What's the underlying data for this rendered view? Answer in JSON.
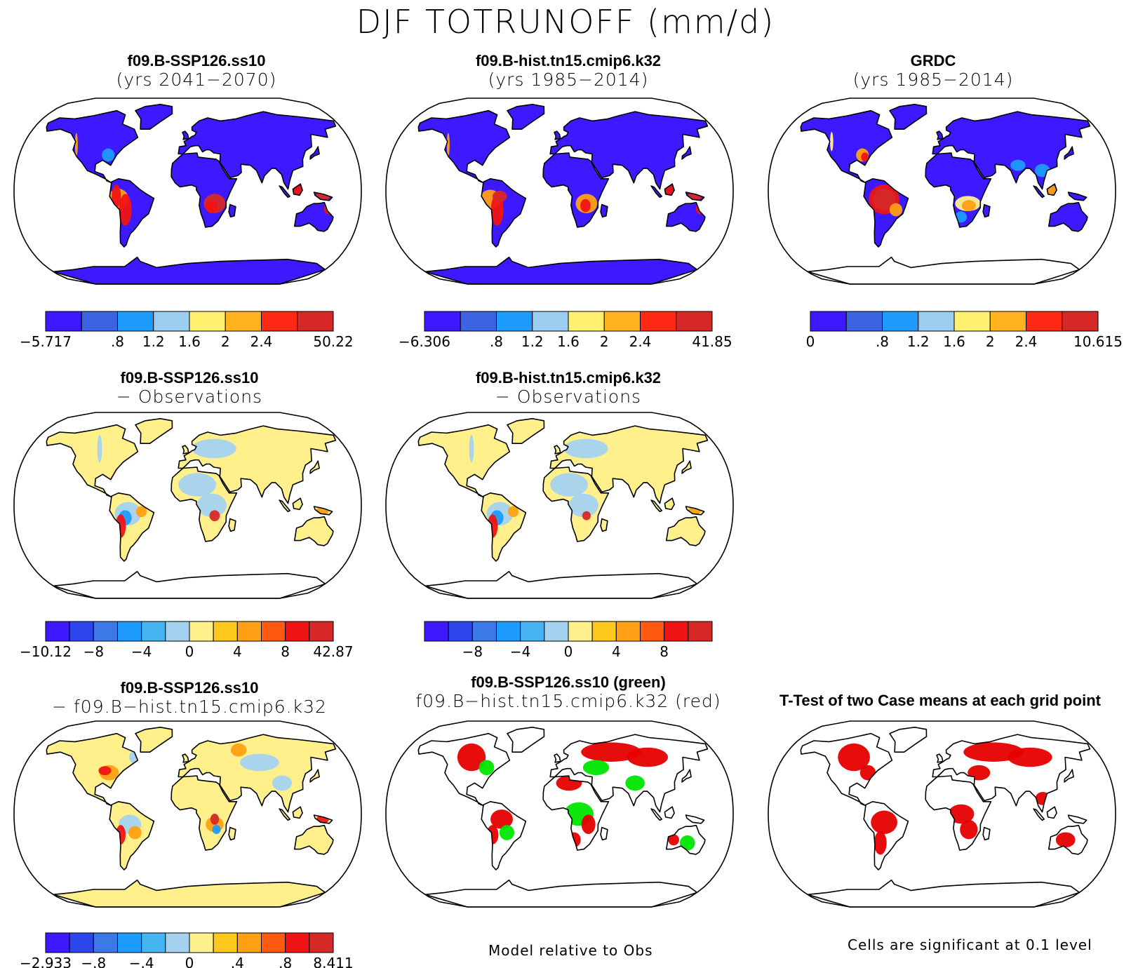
{
  "title": "DJF TOTRUNOFF (mm/d)",
  "panels": [
    {
      "id": "p1",
      "line1": "f09.B-SSP126.ss10",
      "line2": "(yrs 2041−2070)",
      "kind": "absolute"
    },
    {
      "id": "p2",
      "line1": "f09.B-hist.tn15.cmip6.k32",
      "line2": "(yrs 1985−2014)",
      "kind": "absolute"
    },
    {
      "id": "p3",
      "line1": "GRDC",
      "line2": "(yrs 1985−2014)",
      "kind": "absolute"
    },
    {
      "id": "p4",
      "line1": "f09.B-SSP126.ss10",
      "line2": "− Observations",
      "kind": "difference"
    },
    {
      "id": "p5",
      "line1": "f09.B-hist.tn15.cmip6.k32",
      "line2": "− Observations",
      "kind": "difference"
    },
    {
      "id": "p6",
      "line1": "f09.B-SSP126.ss10",
      "line2": "− f09.B−hist.tn15.cmip6.k32",
      "kind": "difference"
    },
    {
      "id": "p7",
      "line1": "f09.B-SSP126.ss10 (green)",
      "line2": "f09.B−hist.tn15.cmip6.k32 (red)",
      "kind": "comparison"
    },
    {
      "id": "p8",
      "line1": "T-Test of two Case means at each grid point",
      "line2": "",
      "kind": "significance"
    }
  ],
  "colorbars": [
    {
      "id": "cb1",
      "colors": [
        "#3c19ff",
        "#3c64e1",
        "#1e9bff",
        "#9bcdf0",
        "#fff06e",
        "#ffb41e",
        "#ff2814",
        "#d72828"
      ],
      "labels": [
        "−5.717",
        ".8",
        "1.2",
        "1.6",
        "2",
        "2.4",
        "50.22"
      ],
      "label_at": [
        0,
        2,
        3,
        4,
        5,
        6,
        8
      ]
    },
    {
      "id": "cb2",
      "colors": [
        "#3c19ff",
        "#3c64e1",
        "#1e9bff",
        "#9bcdf0",
        "#fff06e",
        "#ffb41e",
        "#ff2814",
        "#d72828"
      ],
      "labels": [
        "−6.306",
        ".8",
        "1.2",
        "1.6",
        "2",
        "2.4",
        "41.85"
      ],
      "label_at": [
        0,
        2,
        3,
        4,
        5,
        6,
        8
      ]
    },
    {
      "id": "cb3",
      "colors": [
        "#3c19ff",
        "#3c64e1",
        "#1e9bff",
        "#9bcdf0",
        "#fff06e",
        "#ffb41e",
        "#ff2814",
        "#d72828"
      ],
      "labels": [
        "0",
        ".8",
        "1.2",
        "1.6",
        "2",
        "2.4",
        "10.615"
      ],
      "label_at": [
        0,
        2,
        3,
        4,
        5,
        6,
        8
      ]
    },
    {
      "id": "cb4",
      "colors": [
        "#3c19ff",
        "#2d46eb",
        "#3c78e6",
        "#1e9bff",
        "#46b4f0",
        "#a5d2f0",
        "#fff08c",
        "#ffc81e",
        "#ffa014",
        "#ff5a0f",
        "#f01414",
        "#d72828"
      ],
      "labels": [
        "−10.12",
        "−8",
        "−4",
        "0",
        "4",
        "8",
        "42.87"
      ],
      "label_at": [
        0,
        2,
        4,
        6,
        8,
        10,
        12
      ]
    },
    {
      "id": "cb5",
      "colors": [
        "#3c19ff",
        "#2d46eb",
        "#3c78e6",
        "#1e9bff",
        "#46b4f0",
        "#a5d2f0",
        "#fff08c",
        "#ffc81e",
        "#ffa014",
        "#ff5a0f",
        "#f01414",
        "#d72828"
      ],
      "labels": [
        "−8",
        "−4",
        "0",
        "4",
        "8"
      ],
      "label_at": [
        2,
        4,
        6,
        8,
        10
      ]
    },
    {
      "id": "cb6",
      "colors": [
        "#3c19ff",
        "#2d46eb",
        "#3c78e6",
        "#1e9bff",
        "#46b4f0",
        "#a5d2f0",
        "#fff08c",
        "#ffc81e",
        "#ffa014",
        "#ff5a0f",
        "#f01414",
        "#d72828"
      ],
      "labels": [
        "−2.933",
        "−.8",
        "−.4",
        "0",
        ".4",
        ".8",
        "8.411"
      ],
      "label_at": [
        0,
        2,
        4,
        6,
        8,
        10,
        12
      ]
    }
  ],
  "notes": {
    "model_relative": "Model relative to Obs",
    "significance": "Cells are significant at 0.1 level"
  },
  "chart_data": {
    "type": "heatmap",
    "title": "DJF TOTRUNOFF (mm/d)",
    "projection": "Robinson",
    "maps": [
      {
        "name": "f09.B-SSP126.ss10 (yrs 2041−2070)",
        "min": -5.717,
        "max": 50.22,
        "levels": [
          0.8,
          1.2,
          1.6,
          2,
          2.4
        ]
      },
      {
        "name": "f09.B-hist.tn15.cmip6.k32 (yrs 1985−2014)",
        "min": -6.306,
        "max": 41.85,
        "levels": [
          0.8,
          1.2,
          1.6,
          2,
          2.4
        ]
      },
      {
        "name": "GRDC (yrs 1985−2014)",
        "min": 0,
        "max": 10.615,
        "levels": [
          0.8,
          1.2,
          1.6,
          2,
          2.4
        ]
      },
      {
        "name": "f09.B-SSP126.ss10 − Observations",
        "min": -10.12,
        "max": 42.87,
        "levels": [
          -8,
          -4,
          0,
          4,
          8
        ]
      },
      {
        "name": "f09.B-hist.tn15.cmip6.k32 − Observations",
        "levels": [
          -8,
          -4,
          0,
          4,
          8
        ]
      },
      {
        "name": "f09.B-SSP126.ss10 − f09.B−hist.tn15.cmip6.k32",
        "min": -2.933,
        "max": 8.411,
        "levels": [
          -0.8,
          -0.4,
          0,
          0.4,
          0.8
        ]
      },
      {
        "name": "f09.B-SSP126.ss10 (green) / f09.B−hist.tn15.cmip6.k32 (red)",
        "colors": {
          "case1": "#00e600",
          "case2": "#e60000"
        }
      },
      {
        "name": "T-Test of two Case means at each grid point",
        "colors": {
          "significant": "#e60000"
        }
      }
    ]
  }
}
